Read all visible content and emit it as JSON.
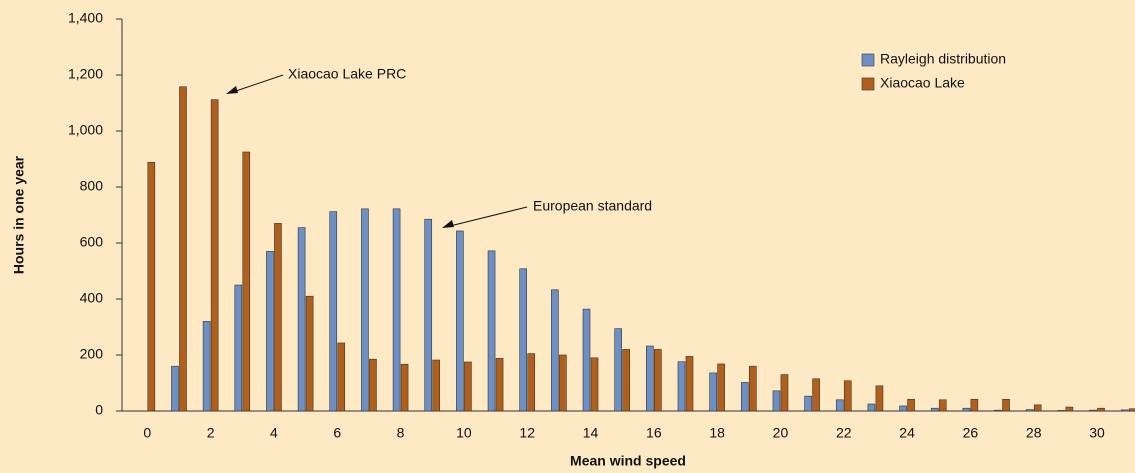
{
  "chart_data": {
    "type": "bar",
    "y_label": "Hours in one year",
    "x_label": "Mean wind speed",
    "x": [
      0,
      1,
      2,
      3,
      4,
      5,
      6,
      7,
      8,
      9,
      10,
      11,
      12,
      13,
      14,
      15,
      16,
      17,
      18,
      19,
      20,
      21,
      22,
      23,
      24,
      25,
      26,
      27,
      28,
      29,
      30,
      31
    ],
    "xlim": [
      -0.8,
      31.2
    ],
    "xticks": [
      0,
      2,
      4,
      6,
      8,
      10,
      12,
      14,
      16,
      18,
      20,
      22,
      24,
      26,
      28,
      30
    ],
    "ylim": [
      0,
      1400
    ],
    "yticks": [
      0,
      200,
      400,
      600,
      800,
      {
        "value": 1000,
        "label": "1,000"
      },
      {
        "value": 1200,
        "label": "1,200"
      },
      {
        "value": 1400,
        "label": "1,400"
      }
    ],
    "legend": "upper right",
    "series": [
      {
        "name": "Rayleigh distribution",
        "color": "#6d8fc4",
        "values": [
          0,
          160,
          320,
          450,
          570,
          655,
          712,
          722,
          722,
          685,
          643,
          572,
          508,
          433,
          364,
          294,
          232,
          176,
          136,
          102,
          72,
          53,
          40,
          25,
          18,
          10,
          10,
          3,
          5,
          2,
          3,
          4
        ]
      },
      {
        "name": "Xiaocao Lake",
        "color": "#b0601c",
        "values": [
          888,
          1158,
          1112,
          925,
          670,
          410,
          243,
          185,
          167,
          182,
          175,
          188,
          205,
          200,
          190,
          220,
          220,
          195,
          168,
          160,
          130,
          115,
          108,
          90,
          42,
          40,
          42,
          42,
          22,
          14,
          10,
          8
        ]
      }
    ],
    "annotations": [
      "Xiaocao Lake PRC",
      "European standard"
    ]
  }
}
